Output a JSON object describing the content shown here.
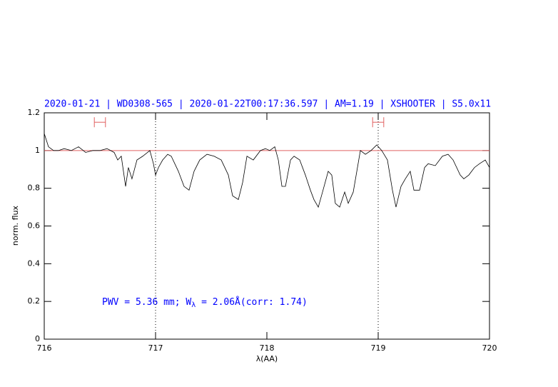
{
  "chart_data": {
    "type": "line",
    "title": "2020-01-21 | WD0308-565 | 2020-01-22T00:17:36.597 | AM=1.19 | XSHOOTER | S5.0x11",
    "x_label": "λ(AA)",
    "y_label": "norm. flux",
    "annotation": [
      "PWV = 5.36 mm; W",
      "λ",
      " = 2.06Å(corr: 1.74)"
    ],
    "xlim": [
      716,
      720
    ],
    "ylim": [
      0,
      1.2
    ],
    "xticks": [
      716,
      717,
      718,
      719,
      720
    ],
    "yticks": [
      0,
      0.2,
      0.4,
      0.6,
      0.8,
      1,
      1.2
    ],
    "hline": 1,
    "hline_color": "#e06060",
    "vlines": [
      717,
      719
    ],
    "intervals": [
      {
        "x": [
          716.45,
          716.55
        ],
        "y": 1.15
      },
      {
        "x": [
          718.95,
          719.05
        ],
        "y": 1.15
      }
    ],
    "interval_color": "#e06060",
    "series": [
      {
        "color": "#000000",
        "x": [
          716.0,
          716.038,
          716.083,
          716.128,
          716.179,
          716.244,
          716.308,
          716.372,
          716.436,
          716.5,
          716.564,
          716.628,
          716.66,
          716.692,
          716.731,
          716.756,
          716.788,
          716.833,
          716.885,
          716.949,
          716.981,
          717.0,
          717.026,
          717.064,
          717.109,
          717.141,
          717.173,
          717.205,
          717.256,
          717.301,
          717.346,
          717.397,
          717.462,
          717.526,
          717.59,
          717.654,
          717.692,
          717.744,
          717.782,
          717.821,
          717.878,
          717.942,
          717.987,
          718.026,
          718.071,
          718.103,
          718.135,
          718.167,
          718.212,
          718.244,
          718.295,
          718.346,
          718.391,
          718.423,
          718.462,
          718.5,
          718.551,
          718.583,
          718.615,
          718.654,
          718.699,
          718.731,
          718.776,
          718.808,
          718.84,
          718.885,
          718.936,
          718.987,
          719.032,
          719.083,
          719.128,
          719.16,
          719.205,
          719.244,
          719.288,
          719.321,
          719.372,
          719.417,
          719.449,
          719.513,
          719.577,
          719.628,
          719.673,
          719.737,
          719.769,
          719.814,
          719.865,
          719.91,
          719.962,
          720.0
        ],
        "values": [
          1.09,
          1.02,
          1.0,
          1.0,
          1.01,
          1.0,
          1.02,
          0.99,
          1.0,
          1.0,
          1.01,
          0.99,
          0.95,
          0.97,
          0.81,
          0.91,
          0.85,
          0.95,
          0.97,
          1.0,
          0.93,
          0.87,
          0.91,
          0.95,
          0.98,
          0.97,
          0.93,
          0.89,
          0.81,
          0.79,
          0.89,
          0.95,
          0.98,
          0.97,
          0.95,
          0.87,
          0.76,
          0.74,
          0.83,
          0.97,
          0.95,
          1.0,
          1.01,
          1.0,
          1.02,
          0.95,
          0.81,
          0.81,
          0.95,
          0.97,
          0.95,
          0.87,
          0.79,
          0.74,
          0.7,
          0.78,
          0.89,
          0.87,
          0.72,
          0.7,
          0.78,
          0.72,
          0.78,
          0.89,
          1.0,
          0.98,
          1.0,
          1.03,
          1.0,
          0.95,
          0.79,
          0.7,
          0.81,
          0.85,
          0.89,
          0.79,
          0.79,
          0.91,
          0.93,
          0.92,
          0.97,
          0.98,
          0.95,
          0.87,
          0.85,
          0.87,
          0.91,
          0.93,
          0.95,
          0.91
        ]
      }
    ]
  }
}
